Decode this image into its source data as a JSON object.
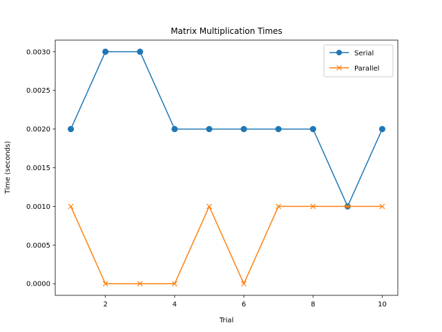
{
  "chart_data": {
    "type": "line",
    "title": "Matrix Multiplication Times",
    "xlabel": "Trial",
    "ylabel": "Time (seconds)",
    "x": [
      1,
      2,
      3,
      4,
      5,
      6,
      7,
      8,
      9,
      10
    ],
    "xlim": [
      0.55,
      10.45
    ],
    "ylim": [
      -0.00015,
      0.00315
    ],
    "xticks": [
      2,
      4,
      6,
      8,
      10
    ],
    "xtick_labels": [
      "2",
      "4",
      "6",
      "8",
      "10"
    ],
    "yticks": [
      0,
      0.0005,
      0.001,
      0.0015,
      0.002,
      0.0025,
      0.003
    ],
    "ytick_labels": [
      "0.0000",
      "0.0005",
      "0.0010",
      "0.0015",
      "0.0020",
      "0.0025",
      "0.0030"
    ],
    "grid": false,
    "legend_position": "upper-right",
    "series": [
      {
        "name": "Serial",
        "color": "#1f77b4",
        "marker": "circle",
        "values": [
          0.002,
          0.003,
          0.003,
          0.002,
          0.002,
          0.002,
          0.002,
          0.002,
          0.001,
          0.002
        ]
      },
      {
        "name": "Parallel",
        "color": "#ff7f0e",
        "marker": "x",
        "values": [
          0.001,
          0.0,
          0.0,
          0.0,
          0.001,
          0.0,
          0.001,
          0.001,
          0.001,
          0.001
        ]
      }
    ]
  }
}
